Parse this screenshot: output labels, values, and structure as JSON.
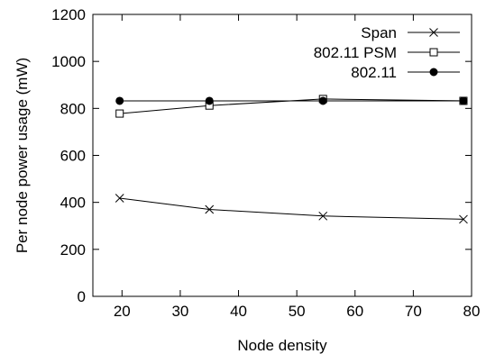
{
  "chart_data": {
    "type": "line",
    "title": "",
    "xlabel": "Node density",
    "ylabel": "Per node power usage (mW)",
    "xlim": [
      15,
      80
    ],
    "ylim": [
      0,
      1200
    ],
    "x_ticks": [
      "20",
      "30",
      "40",
      "50",
      "60",
      "70",
      "80"
    ],
    "y_ticks": [
      "0",
      "200",
      "400",
      "600",
      "800",
      "1000",
      "1200"
    ],
    "grid": false,
    "legend": "top-right",
    "series": [
      {
        "name": "Span",
        "marker": "x",
        "color": "#000000",
        "x": [
          19.6,
          35,
          54.5,
          78.6
        ],
        "y": [
          418,
          370,
          342,
          328
        ]
      },
      {
        "name": "802.11 PSM",
        "marker": "square-open",
        "color": "#000000",
        "x": [
          19.6,
          35,
          54.5,
          78.6
        ],
        "y": [
          778,
          812,
          840,
          832
        ]
      },
      {
        "name": "802.11",
        "marker": "circle-filled",
        "color": "#000000",
        "x": [
          19.6,
          35,
          54.5,
          78.6
        ],
        "y": [
          832,
          832,
          832,
          832
        ]
      }
    ]
  }
}
